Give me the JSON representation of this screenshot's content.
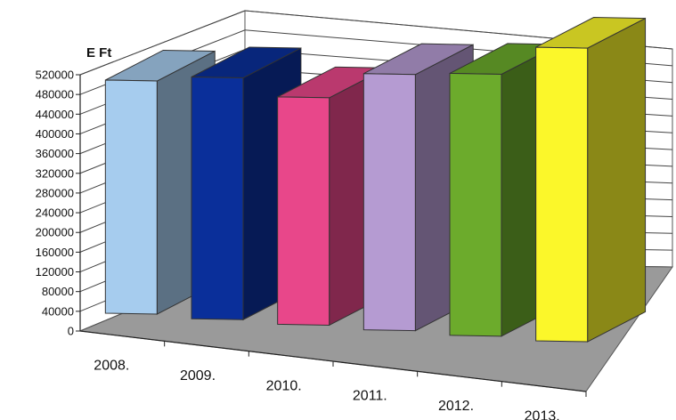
{
  "chart_data": {
    "type": "bar",
    "title": "",
    "xlabel": "",
    "ylabel": "E Ft",
    "ylim": [
      0,
      520000
    ],
    "yticks": [
      0,
      40000,
      80000,
      120000,
      160000,
      200000,
      240000,
      280000,
      320000,
      360000,
      400000,
      440000,
      480000,
      520000
    ],
    "categories": [
      "2008.",
      "2009.",
      "2010.",
      "2011.",
      "2012.",
      "2013."
    ],
    "values": [
      405000,
      420000,
      395000,
      445000,
      455000,
      510000
    ],
    "colors": [
      "#a6ccee",
      "#0a2f9a",
      "#e8478a",
      "#b59bd2",
      "#6cab2c",
      "#fbf72a"
    ],
    "grid": true,
    "legend": "none"
  }
}
